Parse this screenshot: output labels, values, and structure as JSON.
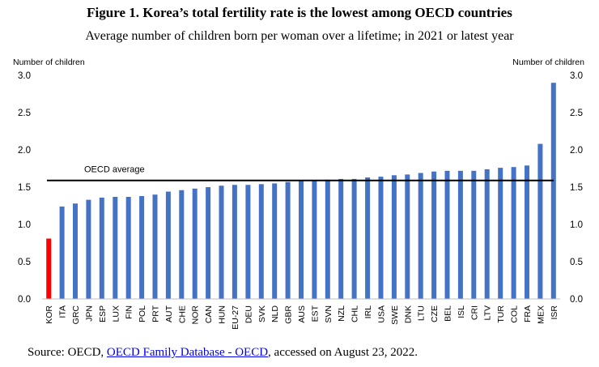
{
  "title": "Figure 1. Korea’s total fertility rate is the lowest among OECD countries",
  "subtitle": "Average number of children born per woman over a lifetime; in 2021 or latest year",
  "source": {
    "prefix": "Source: OECD, ",
    "link_text": "OECD Family Database - OECD",
    "suffix": ", accessed on August 23, 2022."
  },
  "chart_data": {
    "type": "bar",
    "ylabel_left": "Number of children",
    "ylabel_right": "Number of children",
    "ylim": [
      0,
      3.0
    ],
    "yticks": [
      "0.0",
      "0.5",
      "1.0",
      "1.5",
      "2.0",
      "2.5",
      "3.0"
    ],
    "grid": false,
    "categories": [
      "KOR",
      "ITA",
      "GRC",
      "JPN",
      "ESP",
      "LUX",
      "FIN",
      "POL",
      "PRT",
      "AUT",
      "CHE",
      "NOR",
      "CAN",
      "HUN",
      "EU-27",
      "DEU",
      "SVK",
      "NLD",
      "GBR",
      "AUS",
      "EST",
      "SVN",
      "NZL",
      "CHL",
      "IRL",
      "USA",
      "SWE",
      "DNK",
      "LTU",
      "CZE",
      "BEL",
      "ISL",
      "CRI",
      "LTV",
      "TUR",
      "COL",
      "FRA",
      "MEX",
      "ISR"
    ],
    "values": [
      0.81,
      1.24,
      1.28,
      1.33,
      1.36,
      1.37,
      1.37,
      1.38,
      1.4,
      1.44,
      1.46,
      1.48,
      1.5,
      1.52,
      1.53,
      1.53,
      1.54,
      1.55,
      1.57,
      1.59,
      1.59,
      1.6,
      1.61,
      1.61,
      1.63,
      1.64,
      1.66,
      1.67,
      1.69,
      1.71,
      1.72,
      1.72,
      1.72,
      1.74,
      1.76,
      1.77,
      1.79,
      2.08,
      2.9
    ],
    "highlight_category": "KOR",
    "bar_color": "#4472C4",
    "highlight_color": "#FF0000",
    "reference_line": {
      "label": "OECD average",
      "value": 1.59,
      "color": "#000000"
    }
  }
}
